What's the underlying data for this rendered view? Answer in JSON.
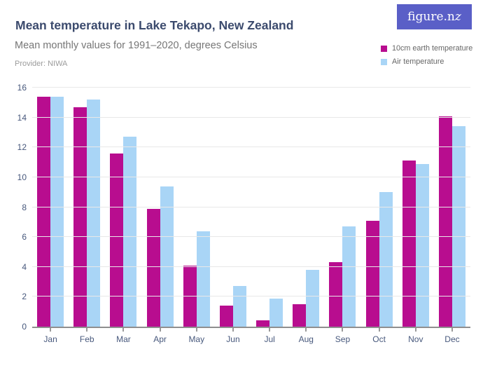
{
  "header": {
    "title": "Mean temperature in Lake Tekapo, New Zealand",
    "subtitle": "Mean monthly values for 1991–2020, degrees Celsius",
    "provider": "Provider: NIWA"
  },
  "logo": {
    "text_main": "figure.n",
    "text_swash": "z"
  },
  "legend": [
    {
      "label": "10cm earth temperature",
      "color": "#b80d8f"
    },
    {
      "label": "Air temperature",
      "color": "#a9d5f6"
    }
  ],
  "colors": {
    "title_text": "#3b4a6d",
    "subtitle_text": "#767676",
    "provider_text": "#9b9b9b",
    "axis_label": "#47587c",
    "gridline": "#e8e8e8",
    "axis_line": "#8f8f8f",
    "logo_background": "#5a5fc7",
    "logo_text": "#ffffff",
    "earth_series": "#b80d8f",
    "air_series": "#a9d5f6"
  },
  "chart_data": {
    "type": "bar",
    "title": "Mean temperature in Lake Tekapo, New Zealand",
    "subtitle": "Mean monthly values for 1991–2020, degrees Celsius",
    "xlabel": "",
    "ylabel": "degrees Celsius",
    "categories": [
      "Jan",
      "Feb",
      "Mar",
      "Apr",
      "May",
      "Jun",
      "Jul",
      "Aug",
      "Sep",
      "Oct",
      "Nov",
      "Dec"
    ],
    "series": [
      {
        "name": "10cm earth temperature",
        "color": "#b80d8f",
        "values": [
          15.4,
          14.7,
          11.6,
          7.9,
          4.1,
          1.4,
          0.4,
          1.5,
          4.3,
          7.1,
          11.1,
          14.1
        ]
      },
      {
        "name": "Air temperature",
        "color": "#a9d5f6",
        "values": [
          15.4,
          15.2,
          12.7,
          9.4,
          6.4,
          2.7,
          1.9,
          3.8,
          6.7,
          9.0,
          10.9,
          13.4
        ]
      }
    ],
    "ylim": [
      0,
      16
    ],
    "yticks": [
      0,
      2,
      4,
      6,
      8,
      10,
      12,
      14,
      16
    ],
    "grid": true,
    "legend_position": "top-right"
  }
}
